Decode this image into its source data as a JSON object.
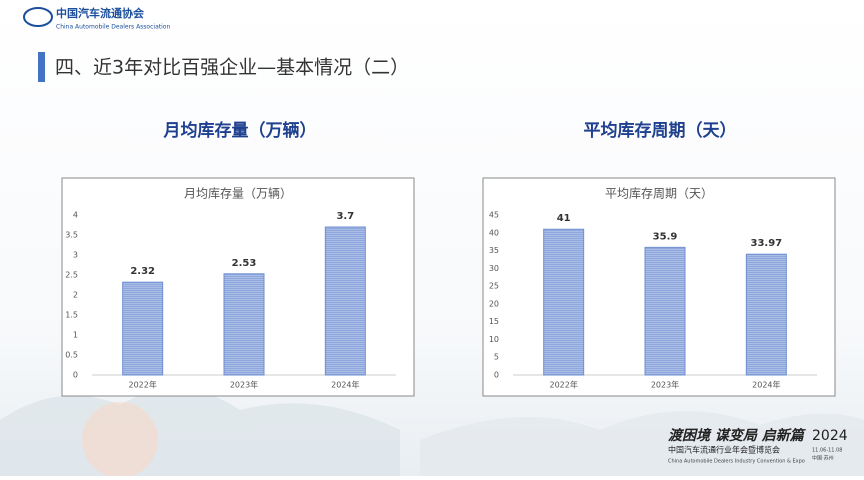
{
  "header": {
    "org_cn": "中国汽车流通协会",
    "org_en": "China Automobile Dealers Association",
    "title": "四、近3年对比百强企业—基本情况（二）"
  },
  "headings": [
    "月均库存量（万辆）",
    "平均库存周期（天）"
  ],
  "chart_data": [
    {
      "type": "bar",
      "title": "月均库存量（万辆）",
      "categories": [
        "2022年",
        "2023年",
        "2024年"
      ],
      "values": [
        2.32,
        2.53,
        3.7
      ],
      "color": "#9fb5e2",
      "ylim": [
        0,
        4
      ],
      "yticks": [
        0,
        0.5,
        1,
        1.5,
        2,
        2.5,
        3,
        3.5,
        4
      ],
      "grid": false
    },
    {
      "type": "bar",
      "title": "平均库存周期（天）",
      "categories": [
        "2022年",
        "2023年",
        "2024年"
      ],
      "values": [
        41,
        35.9,
        33.97
      ],
      "color": "#9fb5e2",
      "ylim": [
        0,
        45
      ],
      "yticks": [
        0,
        5,
        10,
        15,
        20,
        25,
        30,
        35,
        40,
        45
      ],
      "grid": false
    }
  ],
  "footer": {
    "slogan": "渡困境 谋变局 启新篇",
    "year": "2024",
    "event_cn": "中国汽车流通行业年会暨博览会",
    "event_en": "China Automobile Dealers Industry Convention & Expo",
    "dates": "11.06-11.08",
    "place": "中国·苏州"
  }
}
